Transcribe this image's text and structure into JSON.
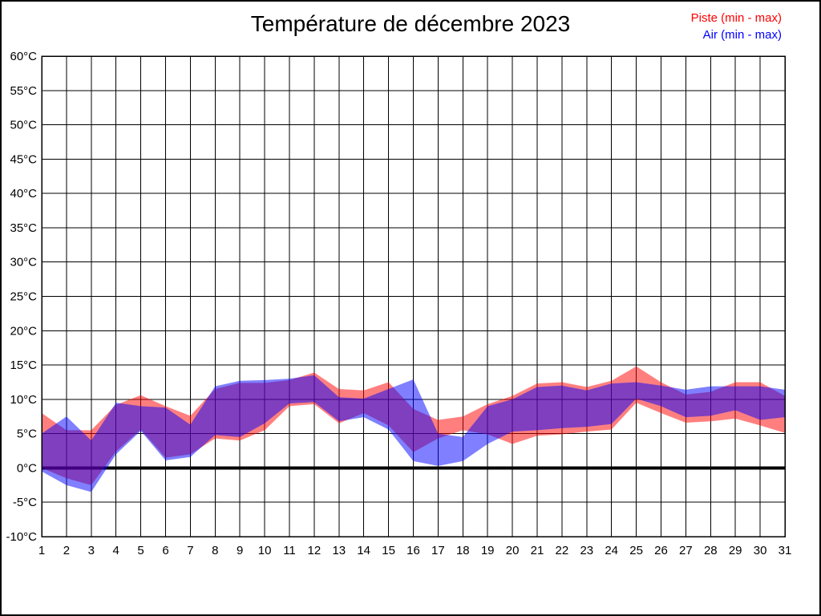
{
  "chart_data": {
    "type": "area",
    "title": "Température de décembre 2023",
    "unit": "°C",
    "x": [
      1,
      2,
      3,
      4,
      5,
      6,
      7,
      8,
      9,
      10,
      11,
      12,
      13,
      14,
      15,
      16,
      17,
      18,
      19,
      20,
      21,
      22,
      23,
      24,
      25,
      26,
      27,
      28,
      29,
      30,
      31
    ],
    "x_tick_labels": [
      "1",
      "2",
      "3",
      "4",
      "5",
      "6",
      "7",
      "8",
      "9",
      "10",
      "11",
      "12",
      "13",
      "14",
      "15",
      "16",
      "17",
      "18",
      "19",
      "20",
      "21",
      "22",
      "23",
      "24",
      "25",
      "26",
      "27",
      "28",
      "29",
      "30",
      "31"
    ],
    "y_tick_labels": [
      "60°C",
      "55°C",
      "50°C",
      "45°C",
      "40°C",
      "35°C",
      "30°C",
      "25°C",
      "20°C",
      "15°C",
      "10°C",
      "5°C",
      "0°C",
      "-5°C",
      "-10°C"
    ],
    "ylim": [
      -10,
      60
    ],
    "ytick_step": 5,
    "grid": true,
    "gridline_color": "#000000",
    "zero_line": true,
    "background": "#ffffff",
    "legend_position": "top-right",
    "series": [
      {
        "name": "Piste (min - max)",
        "color": "#ff0000",
        "opacity": 0.5,
        "min": [
          0,
          -1.5,
          -2.5,
          2.4,
          5.6,
          1.5,
          2.0,
          4.3,
          4.0,
          5.5,
          9.0,
          9.3,
          6.5,
          8.0,
          6.2,
          2.3,
          4.3,
          5.5,
          4.9,
          3.5,
          4.7,
          4.9,
          5.3,
          5.6,
          9.5,
          8.0,
          6.6,
          6.8,
          7.2,
          6.2,
          5.1
        ],
        "max": [
          8.0,
          5.5,
          5.5,
          9.2,
          10.6,
          9.0,
          7.6,
          11.5,
          12.4,
          12.4,
          12.8,
          13.9,
          11.5,
          11.3,
          12.5,
          8.6,
          7.0,
          7.5,
          9.3,
          10.5,
          12.3,
          12.5,
          11.8,
          12.7,
          14.8,
          12.5,
          10.7,
          11.1,
          12.5,
          12.5,
          10.5
        ]
      },
      {
        "name": "Air (min - max)",
        "color": "#0000ff",
        "opacity": 0.5,
        "min": [
          -0.5,
          -2.5,
          -3.5,
          2.0,
          5.4,
          1.1,
          1.6,
          4.8,
          4.5,
          6.5,
          9.4,
          9.6,
          6.8,
          7.4,
          5.6,
          1.0,
          0.3,
          1.0,
          3.5,
          5.3,
          5.5,
          5.8,
          6.0,
          6.4,
          10.1,
          9.0,
          7.4,
          7.6,
          8.4,
          7.0,
          7.4
        ],
        "max": [
          5.0,
          7.5,
          4.0,
          9.5,
          9.0,
          8.8,
          6.3,
          11.9,
          12.7,
          12.8,
          13.0,
          13.5,
          10.3,
          10.1,
          11.5,
          12.9,
          5.0,
          4.5,
          9.0,
          10.0,
          11.8,
          12.0,
          11.3,
          12.3,
          12.5,
          12.0,
          11.4,
          11.9,
          11.9,
          11.9,
          11.4
        ]
      }
    ]
  }
}
